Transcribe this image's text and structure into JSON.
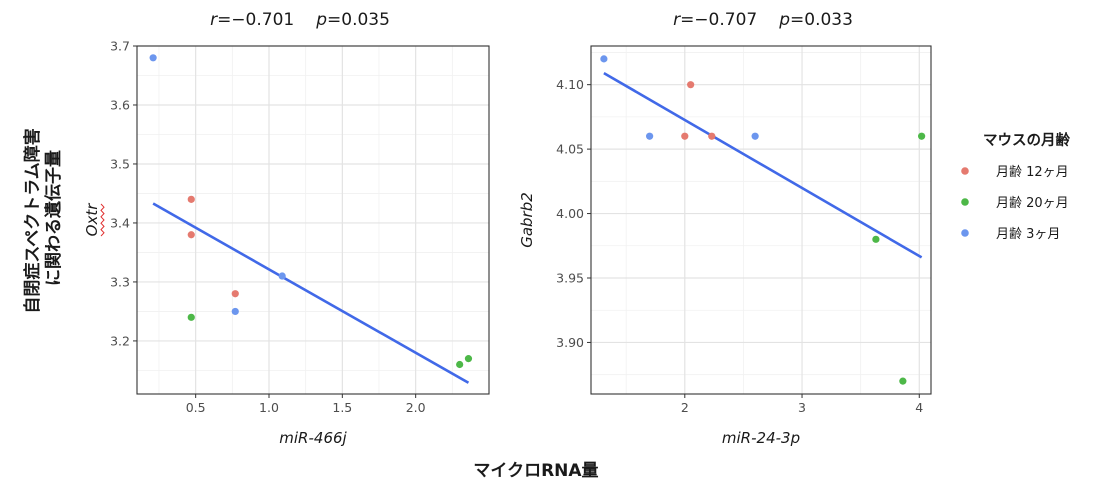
{
  "y_outer_label": [
    "自閉症スペクトラム障害",
    "に関わる遺伝子量"
  ],
  "x_outer_label": "マイクロRNA量",
  "legend": {
    "title": "マウスの月齢",
    "entries": [
      {
        "key": "12",
        "label": "月齢 12ヶ月",
        "color": "#E57A6F"
      },
      {
        "key": "20",
        "label": "月齢 20ヶ月",
        "color": "#4DB848"
      },
      {
        "key": "3",
        "label": "月齢 3ヶ月",
        "color": "#6C96EE"
      }
    ]
  },
  "colors": {
    "fit_line": "#4169E8",
    "grid_major": "#e3e3e3",
    "grid_minor": "#f1f1f1",
    "panel_border": "#333333"
  },
  "chart_data": [
    {
      "type": "scatter",
      "title": {
        "r_sym": "r",
        "r_val": "=−0.701",
        "p_sym": "p",
        "p_val": "=0.035"
      },
      "xlabel": "miR-466j",
      "ylabel": "Oxtr",
      "xlim": [
        0.1,
        2.5
      ],
      "ylim": [
        3.11,
        3.7
      ],
      "xticks": [
        0.5,
        1.0,
        1.5,
        2.0
      ],
      "xtick_labels": [
        "0.5",
        "1.0",
        "1.5",
        "2.0"
      ],
      "yticks": [
        3.2,
        3.3,
        3.4,
        3.5,
        3.6,
        3.7
      ],
      "ytick_labels": [
        "3.2",
        "3.3",
        "3.4",
        "3.5",
        "3.6",
        "3.7"
      ],
      "grid": true,
      "points": [
        {
          "x": 0.21,
          "y": 3.68,
          "group": "3"
        },
        {
          "x": 0.47,
          "y": 3.44,
          "group": "12"
        },
        {
          "x": 0.47,
          "y": 3.38,
          "group": "12"
        },
        {
          "x": 0.47,
          "y": 3.24,
          "group": "20"
        },
        {
          "x": 0.77,
          "y": 3.28,
          "group": "12"
        },
        {
          "x": 0.77,
          "y": 3.25,
          "group": "3"
        },
        {
          "x": 1.09,
          "y": 3.31,
          "group": "3"
        },
        {
          "x": 2.3,
          "y": 3.16,
          "group": "20"
        },
        {
          "x": 2.36,
          "y": 3.17,
          "group": "20"
        }
      ],
      "fit_line": {
        "x": [
          0.21,
          2.36
        ],
        "y": [
          3.433,
          3.129
        ]
      }
    },
    {
      "type": "scatter",
      "title": {
        "r_sym": "r",
        "r_val": "=−0.707",
        "p_sym": "p",
        "p_val": "=0.033"
      },
      "xlabel": "miR-24-3p",
      "ylabel": "Gabrb2",
      "xlim": [
        1.2,
        4.1
      ],
      "ylim": [
        3.86,
        4.13
      ],
      "xticks": [
        2,
        3,
        4
      ],
      "xtick_labels": [
        "2",
        "3",
        "4"
      ],
      "yticks": [
        3.9,
        3.95,
        4.0,
        4.05,
        4.1
      ],
      "ytick_labels": [
        "3.90",
        "3.95",
        "4.00",
        "4.05",
        "4.10"
      ],
      "grid": true,
      "points": [
        {
          "x": 1.31,
          "y": 4.12,
          "group": "3"
        },
        {
          "x": 1.7,
          "y": 4.06,
          "group": "3"
        },
        {
          "x": 2.0,
          "y": 4.06,
          "group": "12"
        },
        {
          "x": 2.05,
          "y": 4.1,
          "group": "12"
        },
        {
          "x": 2.23,
          "y": 4.06,
          "group": "12"
        },
        {
          "x": 2.6,
          "y": 4.06,
          "group": "3"
        },
        {
          "x": 3.63,
          "y": 3.98,
          "group": "20"
        },
        {
          "x": 3.86,
          "y": 3.87,
          "group": "20"
        },
        {
          "x": 4.02,
          "y": 4.06,
          "group": "20"
        }
      ],
      "fit_line": {
        "x": [
          1.31,
          4.02
        ],
        "y": [
          4.109,
          3.966
        ]
      }
    }
  ]
}
